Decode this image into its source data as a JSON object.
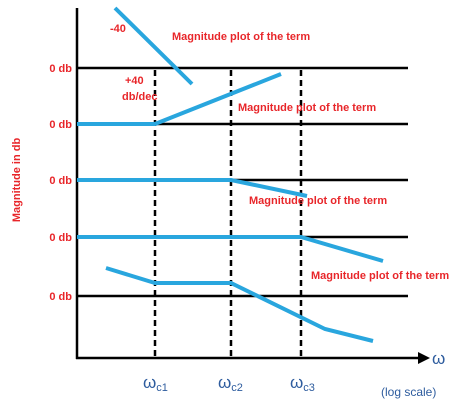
{
  "y_axis_label": "Magnitude in db",
  "zero_labels": [
    "0 db",
    "0 db",
    "0 db",
    "0 db",
    "0 db"
  ],
  "annotations": {
    "slope_minus": "-40",
    "slope_plus": [
      "+40",
      "db/dec"
    ]
  },
  "plot_labels": [
    "Magnitude plot of the term",
    "Magnitude plot of the term",
    "Magnitude plot of the term",
    "Magnitude plot of the term"
  ],
  "x_ticks": [
    {
      "symbol": "ω",
      "sub": "c1"
    },
    {
      "symbol": "ω",
      "sub": "c2"
    },
    {
      "symbol": "ω",
      "sub": "c3"
    }
  ],
  "x_axis": {
    "symbol": "ω",
    "note": "(log scale)"
  }
}
